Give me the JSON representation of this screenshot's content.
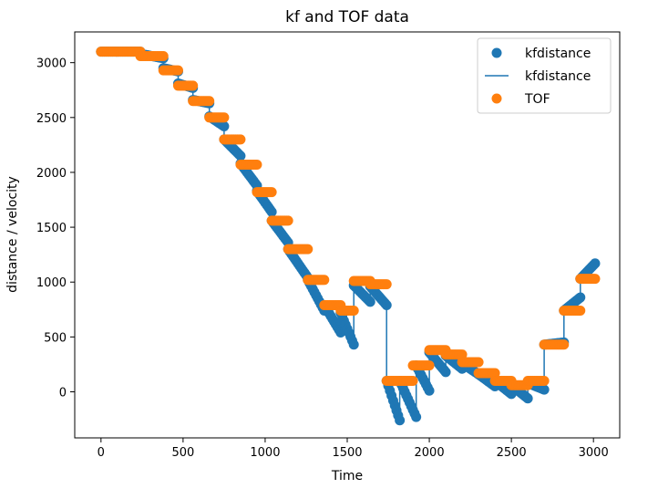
{
  "chart_data": {
    "type": "scatter",
    "title": "kf and TOF data",
    "xlabel": "Time",
    "ylabel": "distance / velocity",
    "xlim": [
      -160,
      3160
    ],
    "ylim": [
      -420,
      3280
    ],
    "xticks": [
      "0",
      "500",
      "1000",
      "1500",
      "2000",
      "2500",
      "3000"
    ],
    "yticks": [
      "0",
      "500",
      "1000",
      "1500",
      "2000",
      "2500",
      "3000"
    ],
    "legend": {
      "placement": "top-right",
      "entries": [
        "kfdistance",
        "kfdistance",
        "TOF"
      ]
    },
    "colors": {
      "kf": "#1f77b4",
      "tof": "#ff7f0e"
    },
    "tof_steps": [
      [
        0,
        240,
        3100
      ],
      [
        240,
        380,
        3060
      ],
      [
        380,
        470,
        2930
      ],
      [
        470,
        560,
        2790
      ],
      [
        560,
        660,
        2650
      ],
      [
        660,
        750,
        2500
      ],
      [
        750,
        850,
        2300
      ],
      [
        850,
        950,
        2070
      ],
      [
        950,
        1040,
        1820
      ],
      [
        1040,
        1140,
        1560
      ],
      [
        1140,
        1260,
        1300
      ],
      [
        1260,
        1360,
        1020
      ],
      [
        1360,
        1460,
        790
      ],
      [
        1460,
        1540,
        740
      ],
      [
        1540,
        1640,
        1010
      ],
      [
        1640,
        1740,
        980
      ],
      [
        1740,
        1900,
        100
      ],
      [
        1900,
        2000,
        240
      ],
      [
        2000,
        2100,
        380
      ],
      [
        2100,
        2200,
        340
      ],
      [
        2200,
        2300,
        270
      ],
      [
        2300,
        2400,
        170
      ],
      [
        2400,
        2500,
        100
      ],
      [
        2500,
        2600,
        60
      ],
      [
        2600,
        2700,
        100
      ],
      [
        2700,
        2820,
        430
      ],
      [
        2820,
        2920,
        740
      ],
      [
        2920,
        3010,
        1030
      ]
    ],
    "kf_segments": [
      [
        0,
        240,
        3100,
        3100
      ],
      [
        240,
        380,
        3080,
        3040
      ],
      [
        380,
        470,
        2950,
        2920
      ],
      [
        470,
        560,
        2810,
        2770
      ],
      [
        560,
        660,
        2660,
        2630
      ],
      [
        660,
        750,
        2510,
        2420
      ],
      [
        750,
        850,
        2300,
        2150
      ],
      [
        850,
        950,
        2080,
        1880
      ],
      [
        950,
        1040,
        1830,
        1640
      ],
      [
        1040,
        1140,
        1560,
        1360
      ],
      [
        1140,
        1260,
        1300,
        1040
      ],
      [
        1260,
        1360,
        1020,
        740
      ],
      [
        1360,
        1460,
        790,
        540
      ],
      [
        1460,
        1540,
        720,
        430
      ],
      [
        1540,
        1640,
        970,
        820
      ],
      [
        1640,
        1740,
        960,
        790
      ],
      [
        1740,
        1820,
        100,
        -260
      ],
      [
        1820,
        1920,
        100,
        -230
      ],
      [
        1920,
        2000,
        240,
        10
      ],
      [
        2000,
        2100,
        360,
        180
      ],
      [
        2100,
        2200,
        330,
        210
      ],
      [
        2200,
        2300,
        260,
        160
      ],
      [
        2300,
        2400,
        160,
        50
      ],
      [
        2400,
        2500,
        100,
        -20
      ],
      [
        2500,
        2600,
        60,
        -60
      ],
      [
        2600,
        2700,
        80,
        20
      ],
      [
        2700,
        2820,
        430,
        450
      ],
      [
        2820,
        2920,
        740,
        860
      ],
      [
        2920,
        3010,
        1030,
        1170
      ]
    ]
  }
}
